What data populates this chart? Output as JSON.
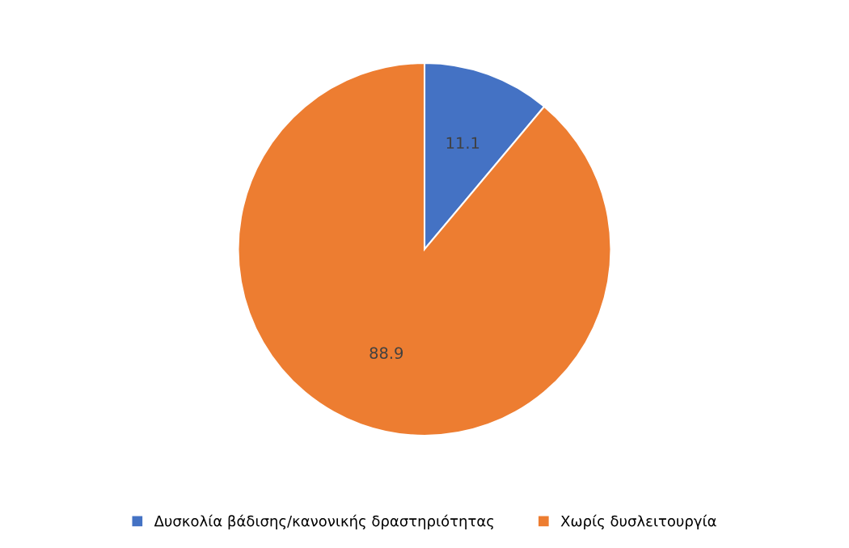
{
  "chart_data": {
    "type": "pie",
    "categories": [
      "Δυσκολία βάδισης/κανονικής δραστηριότητας",
      "Χωρίς δυσλειτουργία"
    ],
    "values": [
      11.1,
      88.9
    ],
    "colors": [
      "#4472c4",
      "#ed7d31"
    ],
    "data_labels": true,
    "legend": "bottom"
  }
}
